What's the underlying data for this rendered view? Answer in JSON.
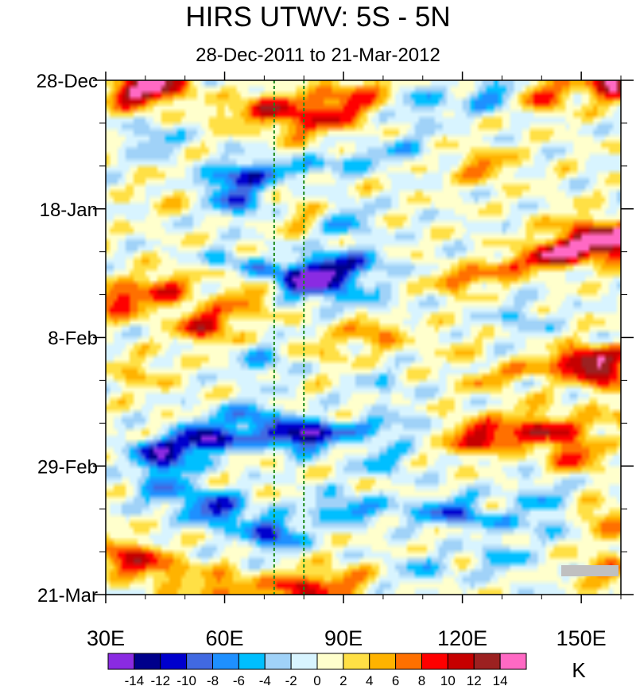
{
  "chart_data": {
    "type": "heatmap",
    "title": "HIRS UTWV: 5S - 5N",
    "subtitle": "28-Dec-2011 to 21-Mar-2012",
    "x_axis": {
      "range": [
        30,
        160
      ],
      "ticks": [
        30,
        60,
        90,
        120,
        150
      ],
      "tick_labels": [
        "30E",
        "60E",
        "90E",
        "120E",
        "150E"
      ],
      "minor_step": 10
    },
    "y_axis": {
      "range_days": [
        0,
        84
      ],
      "ticks_days": [
        0,
        21,
        42,
        63,
        84
      ],
      "tick_labels": [
        "28-Dec",
        "18-Jan",
        "8-Feb",
        "29-Feb",
        "21-Mar"
      ],
      "minor_step_days": 7,
      "direction": "top-to-bottom"
    },
    "reference_lines_lon": [
      72.5,
      80
    ],
    "colorbar": {
      "levels": [
        -14,
        -12,
        -10,
        -8,
        -6,
        -4,
        -2,
        0,
        2,
        4,
        6,
        8,
        10,
        12,
        14
      ],
      "colors": [
        "#8a2be2",
        "#00008b",
        "#0000cd",
        "#4169e1",
        "#1e90ff",
        "#00bfff",
        "#a0d2f8",
        "#d8f4ff",
        "#ffffcc",
        "#ffe045",
        "#ffb300",
        "#ff7000",
        "#ff0000",
        "#c60000",
        "#9c2121",
        "#ff69c4"
      ],
      "label_text": [
        "-14",
        "-12",
        "-10",
        "-8",
        "-6",
        "-4",
        "-2",
        "0",
        "2",
        "4",
        "6",
        "8",
        "10",
        "12",
        "14"
      ],
      "units": "K"
    },
    "features": [
      {
        "lon": 37,
        "day": 2,
        "value": 12
      },
      {
        "lon": 45,
        "day": 0.5,
        "value": 10
      },
      {
        "lon": 158,
        "day": 0.5,
        "value": 14
      },
      {
        "lon": 140,
        "day": 2.5,
        "value": 8
      },
      {
        "lon": 78,
        "day": 7,
        "value": 7
      },
      {
        "lon": 88,
        "day": 5.5,
        "value": 8
      },
      {
        "lon": 70,
        "day": 4,
        "value": 5
      },
      {
        "lon": 95,
        "day": 3,
        "value": 4
      },
      {
        "lon": 42,
        "day": 10,
        "value": -5
      },
      {
        "lon": 110,
        "day": 4,
        "value": -5
      },
      {
        "lon": 128,
        "day": 2.5,
        "value": -7
      },
      {
        "lon": 105,
        "day": 11,
        "value": -4
      },
      {
        "lon": 125,
        "day": 14,
        "value": 6
      },
      {
        "lon": 65,
        "day": 15,
        "value": -6
      },
      {
        "lon": 80,
        "day": 22,
        "value": 4
      },
      {
        "lon": 48,
        "day": 18,
        "value": 4
      },
      {
        "lon": 63,
        "day": 19.5,
        "value": -9
      },
      {
        "lon": 90,
        "day": 23,
        "value": -6
      },
      {
        "lon": 150,
        "day": 24,
        "value": 6
      },
      {
        "lon": 158,
        "day": 27,
        "value": 12
      },
      {
        "lon": 145,
        "day": 28,
        "value": 9
      },
      {
        "lon": 86,
        "day": 31,
        "value": -12
      },
      {
        "lon": 80,
        "day": 33,
        "value": -10
      },
      {
        "lon": 95,
        "day": 30,
        "value": -6
      },
      {
        "lon": 33,
        "day": 36,
        "value": 10
      },
      {
        "lon": 45,
        "day": 34,
        "value": 8
      },
      {
        "lon": 55,
        "day": 40,
        "value": 10
      },
      {
        "lon": 65,
        "day": 36,
        "value": 6
      },
      {
        "lon": 98,
        "day": 41,
        "value": 6
      },
      {
        "lon": 85,
        "day": 44,
        "value": 3
      },
      {
        "lon": 118,
        "day": 44,
        "value": 2
      },
      {
        "lon": 135,
        "day": 39,
        "value": -4
      },
      {
        "lon": 150,
        "day": 46,
        "value": 8
      },
      {
        "lon": 157,
        "day": 48,
        "value": 10
      },
      {
        "lon": 38,
        "day": 48,
        "value": 4
      },
      {
        "lon": 70,
        "day": 46,
        "value": -5
      },
      {
        "lon": 100,
        "day": 50,
        "value": -3
      },
      {
        "lon": 55,
        "day": 58,
        "value": -10
      },
      {
        "lon": 80,
        "day": 58,
        "value": -11
      },
      {
        "lon": 67,
        "day": 55,
        "value": -8
      },
      {
        "lon": 45,
        "day": 62,
        "value": -11
      },
      {
        "lon": 100,
        "day": 62,
        "value": -5
      },
      {
        "lon": 125,
        "day": 58,
        "value": 6
      },
      {
        "lon": 148,
        "day": 61,
        "value": 9
      },
      {
        "lon": 138,
        "day": 55,
        "value": 5
      },
      {
        "lon": 118,
        "day": 70,
        "value": -6
      },
      {
        "lon": 58,
        "day": 70,
        "value": -12
      },
      {
        "lon": 72,
        "day": 74,
        "value": -11
      },
      {
        "lon": 45,
        "day": 67,
        "value": -7
      },
      {
        "lon": 88,
        "day": 70,
        "value": -6
      },
      {
        "lon": 140,
        "day": 68,
        "value": -5
      },
      {
        "lon": 155,
        "day": 72,
        "value": 7
      },
      {
        "lon": 35,
        "day": 78,
        "value": 10
      },
      {
        "lon": 45,
        "day": 80,
        "value": 6
      },
      {
        "lon": 60,
        "day": 83,
        "value": 8
      },
      {
        "lon": 78,
        "day": 83,
        "value": 10
      },
      {
        "lon": 90,
        "day": 82,
        "value": 6
      },
      {
        "lon": 110,
        "day": 80,
        "value": -4
      },
      {
        "lon": 130,
        "day": 78,
        "value": -5
      },
      {
        "lon": 157,
        "day": 80,
        "value": 6
      }
    ],
    "streaks": [
      {
        "from": [
          118,
          33
        ],
        "to": [
          160,
          25
        ],
        "value": 10
      },
      {
        "from": [
          125,
          49
        ],
        "to": [
          160,
          44
        ],
        "value": 6
      },
      {
        "from": [
          120,
          60
        ],
        "to": [
          160,
          55
        ],
        "value": 6
      },
      {
        "from": [
          60,
          6
        ],
        "to": [
          98,
          1
        ],
        "value": 5
      },
      {
        "from": [
          110,
          56
        ],
        "to": [
          145,
          58
        ],
        "value": 4
      },
      {
        "from": [
          40,
          60
        ],
        "to": [
          110,
          56
        ],
        "value": -7
      },
      {
        "from": [
          50,
          17
        ],
        "to": [
          95,
          13
        ],
        "value": -6
      },
      {
        "from": [
          60,
          29
        ],
        "to": [
          100,
          37
        ],
        "value": -6
      },
      {
        "from": [
          95,
          70
        ],
        "to": [
          150,
          73
        ],
        "value": -5
      }
    ]
  }
}
